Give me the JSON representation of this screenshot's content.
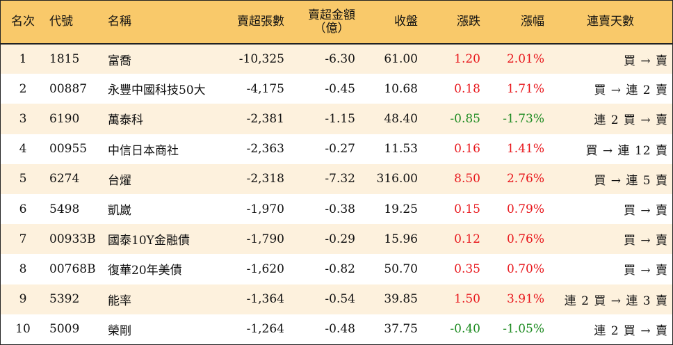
{
  "headers": {
    "rank": "名次",
    "code": "代號",
    "name": "名稱",
    "net_sell_shares": "賣超張數",
    "net_sell_amount": "賣超金額",
    "net_sell_amount_unit": "（億）",
    "close": "收盤",
    "change": "漲跌",
    "change_pct": "漲幅",
    "streak": "連賣天數"
  },
  "colors": {
    "header_bg": "#f9c96a",
    "odd_row_bg": "#fdf1dd",
    "up": "#e8161b",
    "down": "#1b8a1f"
  },
  "rows": [
    {
      "rank": "1",
      "code": "1815",
      "name": "富喬",
      "shares": "-10,325",
      "amount": "-6.30",
      "close": "61.00",
      "change": "1.20",
      "pct": "2.01%",
      "dir": "up",
      "streak": "買 → 賣"
    },
    {
      "rank": "2",
      "code": "00887",
      "name": "永豐中國科技50大",
      "shares": "-4,175",
      "amount": "-0.45",
      "close": "10.68",
      "change": "0.18",
      "pct": "1.71%",
      "dir": "up",
      "streak": "買 → 連 2 賣"
    },
    {
      "rank": "3",
      "code": "6190",
      "name": "萬泰科",
      "shares": "-2,381",
      "amount": "-1.15",
      "close": "48.40",
      "change": "-0.85",
      "pct": "-1.73%",
      "dir": "down",
      "streak": "連 2 買 → 賣"
    },
    {
      "rank": "4",
      "code": "00955",
      "name": "中信日本商社",
      "shares": "-2,363",
      "amount": "-0.27",
      "close": "11.53",
      "change": "0.16",
      "pct": "1.41%",
      "dir": "up",
      "streak": "買 → 連 12 賣"
    },
    {
      "rank": "5",
      "code": "6274",
      "name": "台燿",
      "shares": "-2,318",
      "amount": "-7.32",
      "close": "316.00",
      "change": "8.50",
      "pct": "2.76%",
      "dir": "up",
      "streak": "買 → 連 5 賣"
    },
    {
      "rank": "6",
      "code": "5498",
      "name": "凱崴",
      "shares": "-1,970",
      "amount": "-0.38",
      "close": "19.25",
      "change": "0.15",
      "pct": "0.79%",
      "dir": "up",
      "streak": "買 → 賣"
    },
    {
      "rank": "7",
      "code": "00933B",
      "name": "國泰10Y金融債",
      "shares": "-1,790",
      "amount": "-0.29",
      "close": "15.96",
      "change": "0.12",
      "pct": "0.76%",
      "dir": "up",
      "streak": "買 → 賣"
    },
    {
      "rank": "8",
      "code": "00768B",
      "name": "復華20年美債",
      "shares": "-1,620",
      "amount": "-0.82",
      "close": "50.70",
      "change": "0.35",
      "pct": "0.70%",
      "dir": "up",
      "streak": "買 → 賣"
    },
    {
      "rank": "9",
      "code": "5392",
      "name": "能率",
      "shares": "-1,364",
      "amount": "-0.54",
      "close": "39.85",
      "change": "1.50",
      "pct": "3.91%",
      "dir": "up",
      "streak": "連 2 買 → 連 3 賣"
    },
    {
      "rank": "10",
      "code": "5009",
      "name": "榮剛",
      "shares": "-1,264",
      "amount": "-0.48",
      "close": "37.75",
      "change": "-0.40",
      "pct": "-1.05%",
      "dir": "down",
      "streak": "連 2 買 → 賣"
    }
  ]
}
